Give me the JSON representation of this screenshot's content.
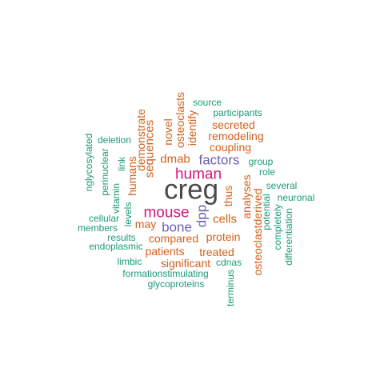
{
  "colors": {
    "dark": "#4a4a4a",
    "magenta": "#d4157a",
    "purple": "#6b5fb0",
    "orange": "#d2601a",
    "teal": "#1b9a78"
  },
  "words": [
    {
      "text": "creg",
      "color": "dark"
    },
    {
      "text": "human",
      "color": "magenta"
    },
    {
      "text": "mouse",
      "color": "magenta"
    },
    {
      "text": "factors",
      "color": "purple"
    },
    {
      "text": "bone",
      "color": "purple"
    },
    {
      "text": "dpp",
      "color": "purple"
    },
    {
      "text": "dmab",
      "color": "orange"
    },
    {
      "text": "sequences",
      "color": "orange"
    },
    {
      "text": "cells",
      "color": "orange"
    },
    {
      "text": "may",
      "color": "orange"
    },
    {
      "text": "compared",
      "color": "orange"
    },
    {
      "text": "protein",
      "color": "orange"
    },
    {
      "text": "patients",
      "color": "orange"
    },
    {
      "text": "treated",
      "color": "orange"
    },
    {
      "text": "significant",
      "color": "orange"
    },
    {
      "text": "thus",
      "color": "orange"
    },
    {
      "text": "analyses",
      "color": "orange"
    },
    {
      "text": "osteoclastderived",
      "color": "orange"
    },
    {
      "text": "remodeling",
      "color": "orange"
    },
    {
      "text": "coupling",
      "color": "orange"
    },
    {
      "text": "secreted",
      "color": "orange"
    },
    {
      "text": "identify",
      "color": "orange"
    },
    {
      "text": "osteoclasts",
      "color": "orange"
    },
    {
      "text": "novel",
      "color": "orange"
    },
    {
      "text": "demonstrate",
      "color": "orange"
    },
    {
      "text": "humans",
      "color": "orange"
    },
    {
      "text": "source",
      "color": "teal"
    },
    {
      "text": "participants",
      "color": "teal"
    },
    {
      "text": "group",
      "color": "teal"
    },
    {
      "text": "role",
      "color": "teal"
    },
    {
      "text": "several",
      "color": "teal"
    },
    {
      "text": "neuronal",
      "color": "teal"
    },
    {
      "text": "potential",
      "color": "teal"
    },
    {
      "text": "completely",
      "color": "teal"
    },
    {
      "text": "differentiation",
      "color": "teal"
    },
    {
      "text": "cdnas",
      "color": "teal"
    },
    {
      "text": "terminus",
      "color": "teal"
    },
    {
      "text": "glycoproteins",
      "color": "teal"
    },
    {
      "text": "formationstimulating",
      "color": "teal"
    },
    {
      "text": "limbic",
      "color": "teal"
    },
    {
      "text": "endoplasmic",
      "color": "teal"
    },
    {
      "text": "results",
      "color": "teal"
    },
    {
      "text": "members",
      "color": "teal"
    },
    {
      "text": "cellular",
      "color": "teal"
    },
    {
      "text": "levels",
      "color": "teal"
    },
    {
      "text": "vitamin",
      "color": "teal"
    },
    {
      "text": "link",
      "color": "teal"
    },
    {
      "text": "perinuclear",
      "color": "teal"
    },
    {
      "text": "nglycosylated",
      "color": "teal"
    },
    {
      "text": "deletion",
      "color": "teal"
    }
  ]
}
